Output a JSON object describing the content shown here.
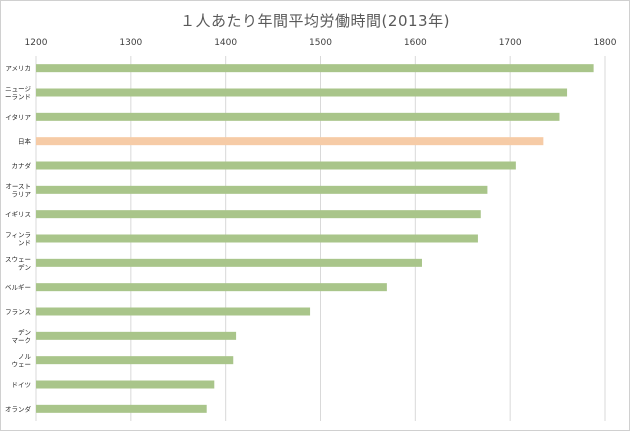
{
  "chart_data": {
    "type": "bar",
    "orientation": "horizontal",
    "title": "１人あたり年間平均労働時間(2013年)",
    "xlim": [
      1200,
      1800
    ],
    "xticks": [
      "1200",
      "1300",
      "1400",
      "1500",
      "1600",
      "1700",
      "1800"
    ],
    "grid": true,
    "legend": "none",
    "colors": {
      "default": "#a9c58a",
      "highlight": "#f6cba6"
    },
    "categories": [
      {
        "label": [
          "アメリカ"
        ],
        "value": 1788,
        "highlight": false
      },
      {
        "label": [
          "ニュージ",
          "ーランド"
        ],
        "value": 1760,
        "highlight": false
      },
      {
        "label": [
          "イタリア"
        ],
        "value": 1752,
        "highlight": false
      },
      {
        "label": [
          "日本"
        ],
        "value": 1735,
        "highlight": true
      },
      {
        "label": [
          "カナダ"
        ],
        "value": 1706,
        "highlight": false
      },
      {
        "label": [
          "オースト",
          "ラリア"
        ],
        "value": 1676,
        "highlight": false
      },
      {
        "label": [
          "イギリス"
        ],
        "value": 1669,
        "highlight": false
      },
      {
        "label": [
          "フィンラ",
          "ンド"
        ],
        "value": 1666,
        "highlight": false
      },
      {
        "label": [
          "スウェー",
          "デン"
        ],
        "value": 1607,
        "highlight": false
      },
      {
        "label": [
          "ベルギー"
        ],
        "value": 1570,
        "highlight": false
      },
      {
        "label": [
          "フランス"
        ],
        "value": 1489,
        "highlight": false
      },
      {
        "label": [
          "デン",
          "マーク"
        ],
        "value": 1411,
        "highlight": false
      },
      {
        "label": [
          "ノル",
          "ウェー"
        ],
        "value": 1408,
        "highlight": false
      },
      {
        "label": [
          "ドイツ"
        ],
        "value": 1388,
        "highlight": false
      },
      {
        "label": [
          "オランダ"
        ],
        "value": 1380,
        "highlight": false
      }
    ]
  }
}
